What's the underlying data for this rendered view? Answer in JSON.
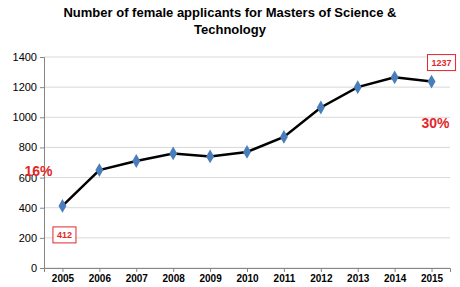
{
  "chart_data": {
    "type": "line",
    "title": "Number of female applicants for Masters of Science & Technology",
    "categories": [
      "2005",
      "2006",
      "2007",
      "2008",
      "2009",
      "2010",
      "2011",
      "2012",
      "2013",
      "2014",
      "2015"
    ],
    "values": [
      412,
      650,
      710,
      760,
      740,
      770,
      870,
      1065,
      1200,
      1265,
      1237
    ],
    "value_labels": [
      "412",
      null,
      null,
      null,
      null,
      null,
      null,
      null,
      null,
      null,
      "1237"
    ],
    "data_labels": true,
    "color": "#000000",
    "marker": "diamond",
    "ylim": [
      0,
      1400
    ],
    "yticks": [
      0,
      200,
      400,
      600,
      800,
      1000,
      1200,
      1400
    ],
    "grid": true,
    "annotations": [
      {
        "text": "16%",
        "x": "2005"
      },
      {
        "text": "30%",
        "x": "2015"
      }
    ]
  }
}
